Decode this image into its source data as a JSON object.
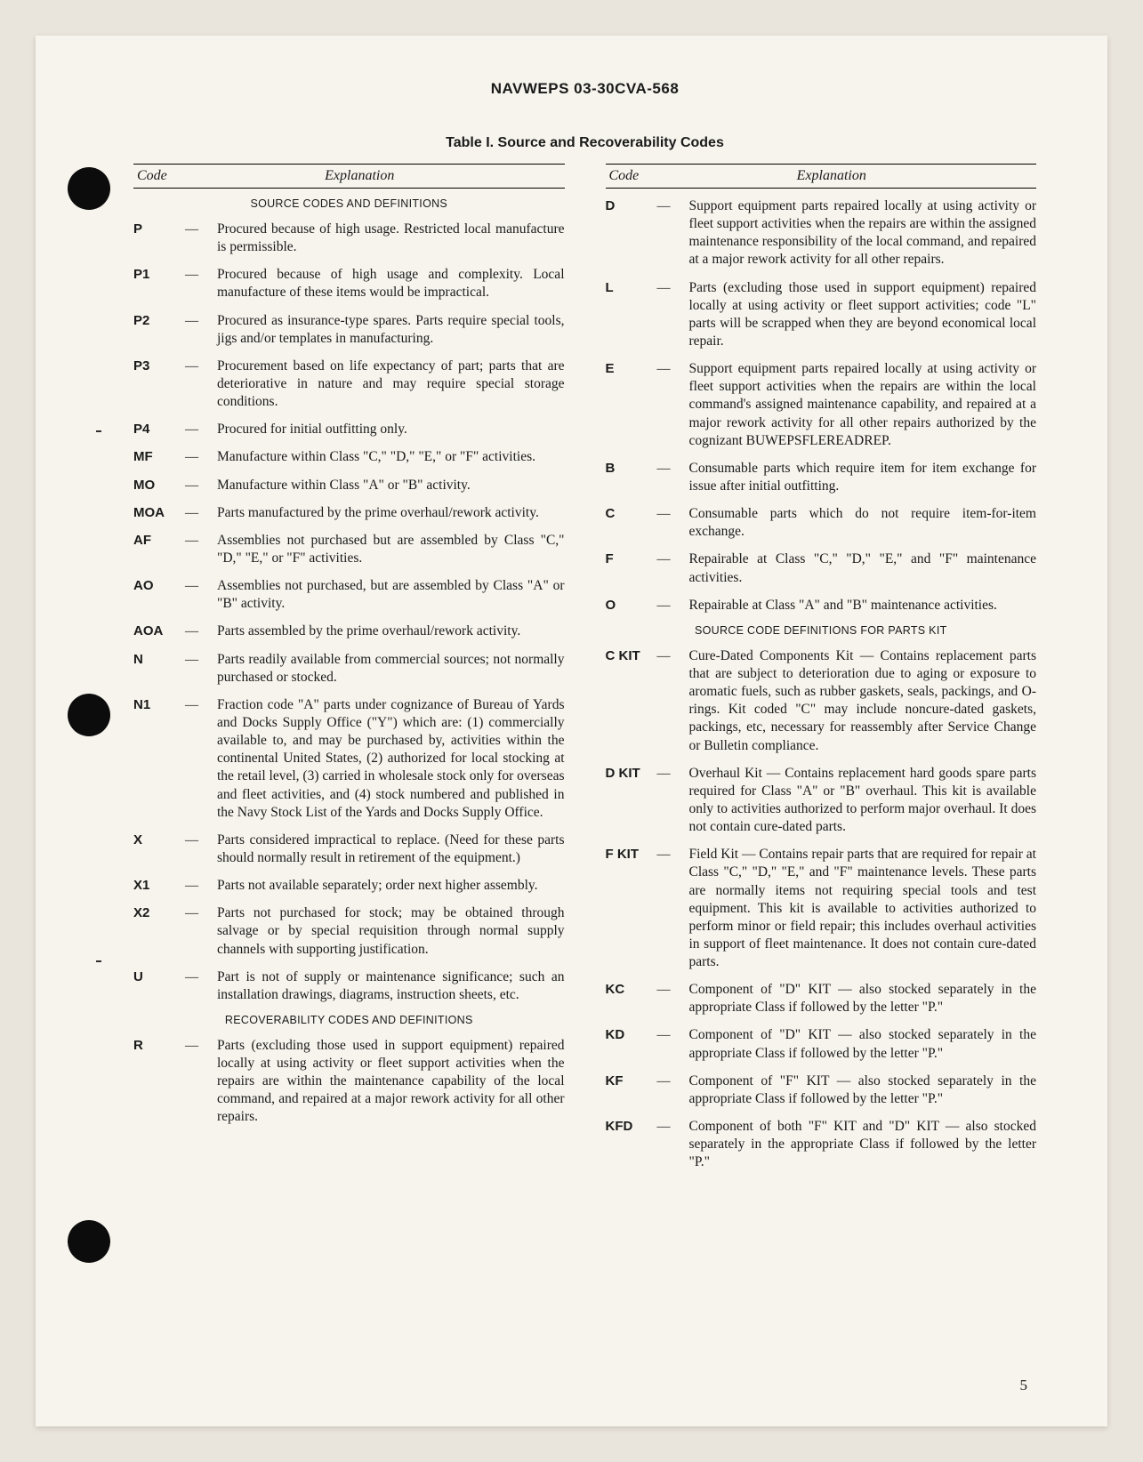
{
  "doc_id": "NAVWEPS 03-30CVA-568",
  "table_title": "Table I. Source and Recoverability Codes",
  "page_number": "5",
  "head": {
    "code": "Code",
    "explanation": "Explanation"
  },
  "sections": {
    "src": "SOURCE CODES AND DEFINITIONS",
    "rec": "RECOVERABILITY CODES AND DEFINITIONS",
    "kit": "SOURCE CODE DEFINITIONS FOR PARTS KIT"
  },
  "left": [
    {
      "code": "P",
      "exp": "Procured because of high usage. Restricted local manufacture is permissible."
    },
    {
      "code": "P1",
      "exp": "Procured because of high usage and complexity. Local manufacture of these items would be impractical."
    },
    {
      "code": "P2",
      "exp": "Procured as insurance-type spares. Parts require special tools, jigs and/or templates in manufacturing."
    },
    {
      "code": "P3",
      "exp": "Procurement based on life expectancy of part; parts that are deteriorative in nature and may require special storage conditions."
    },
    {
      "code": "P4",
      "exp": "Procured for initial outfitting only."
    },
    {
      "code": "MF",
      "exp": "Manufacture within Class \"C,\" \"D,\" \"E,\" or \"F\" activities."
    },
    {
      "code": "MO",
      "exp": "Manufacture within Class \"A\" or \"B\" activity."
    },
    {
      "code": "MOA",
      "exp": "Parts manufactured by the prime overhaul/rework activity."
    },
    {
      "code": "AF",
      "exp": "Assemblies not purchased but are assembled by Class \"C,\" \"D,\" \"E,\" or \"F\" activities."
    },
    {
      "code": "AO",
      "exp": "Assemblies not purchased, but are assembled by Class \"A\" or \"B\" activity."
    },
    {
      "code": "AOA",
      "exp": "Parts assembled by the prime overhaul/rework activity."
    },
    {
      "code": "N",
      "exp": "Parts readily available from commercial sources; not normally purchased or stocked."
    },
    {
      "code": "N1",
      "exp": "Fraction code \"A\" parts under cognizance of Bureau of Yards and Docks Supply Office (\"Y\") which are: (1) commercially available to, and may be purchased by, activities within the continental United States, (2) authorized for local stocking at the retail level, (3) carried in wholesale stock only for overseas and fleet activities, and (4) stock numbered and published in the Navy Stock List of the Yards and Docks Supply Office."
    },
    {
      "code": "X",
      "exp": "Parts considered impractical to replace. (Need for these parts should normally result in retirement of the equipment.)"
    },
    {
      "code": "X1",
      "exp": "Parts not available separately; order next higher assembly."
    },
    {
      "code": "X2",
      "exp": "Parts not purchased for stock; may be obtained through salvage or by special requisition through normal supply channels with supporting justification."
    },
    {
      "code": "U",
      "exp": "Part is not of supply or maintenance significance; such an installation drawings, diagrams, instruction sheets, etc."
    }
  ],
  "left_rec": [
    {
      "code": "R",
      "exp": "Parts (excluding those used in support equipment) repaired locally at using activity or fleet support activities when the repairs are within the maintenance capability of the local command, and repaired at a major rework activity for all other repairs."
    }
  ],
  "right_top": [
    {
      "code": "D",
      "exp": "Support equipment parts repaired locally at using activity or fleet support activities when the repairs are within the assigned maintenance responsibility of the local command, and repaired at a major rework activity for all other repairs."
    },
    {
      "code": "L",
      "exp": "Parts (excluding those used in support equipment) repaired locally at using activity or fleet support activities; code \"L\" parts will be scrapped when they are beyond economical local repair."
    },
    {
      "code": "E",
      "exp": "Support equipment parts repaired locally at using activity or fleet support activities when the repairs are within the local command's assigned maintenance capability, and repaired at a major rework activity for all other repairs authorized by the cognizant BUWEPSFLEREADREP."
    },
    {
      "code": "B",
      "exp": "Consumable parts which require item for item exchange for issue after initial outfitting."
    },
    {
      "code": "C",
      "exp": "Consumable parts which do not require item-for-item exchange."
    },
    {
      "code": "F",
      "exp": "Repairable at Class \"C,\" \"D,\" \"E,\" and \"F\" maintenance activities."
    },
    {
      "code": "O",
      "exp": "Repairable at Class \"A\" and \"B\" maintenance activities."
    }
  ],
  "right_kit": [
    {
      "code": "C KIT",
      "exp": "Cure-Dated Components Kit — Contains replacement parts that are subject to deterioration due to aging or exposure to aromatic fuels, such as rubber gaskets, seals, packings, and O-rings. Kit coded \"C\" may include noncure-dated gaskets, packings, etc, necessary for reassembly after Service Change or Bulletin compliance."
    },
    {
      "code": "D KIT",
      "exp": "Overhaul Kit — Contains replacement hard goods spare parts required for Class \"A\" or \"B\" overhaul. This kit is available only to activities authorized to perform major overhaul. It does not contain cure-dated parts."
    },
    {
      "code": "F KIT",
      "exp": "Field Kit — Contains repair parts that are required for repair at Class \"C,\" \"D,\" \"E,\" and \"F\" maintenance levels. These parts are normally items not requiring special tools and test equipment. This kit is available to activities authorized to perform minor or field repair; this includes overhaul activities in support of fleet maintenance. It does not contain cure-dated parts."
    },
    {
      "code": "KC",
      "exp": "Component of \"D\" KIT — also stocked separately in the appropriate Class if followed by the letter \"P.\""
    },
    {
      "code": "KD",
      "exp": "Component of \"D\" KIT — also stocked separately in the appropriate Class if followed by the letter \"P.\""
    },
    {
      "code": "KF",
      "exp": "Component of \"F\" KIT — also stocked separately in the appropriate Class if followed by the letter \"P.\""
    },
    {
      "code": "KFD",
      "exp": "Component of both \"F\" KIT and \"D\" KIT — also stocked separately in the appropriate Class if followed by the letter \"P.\""
    }
  ]
}
